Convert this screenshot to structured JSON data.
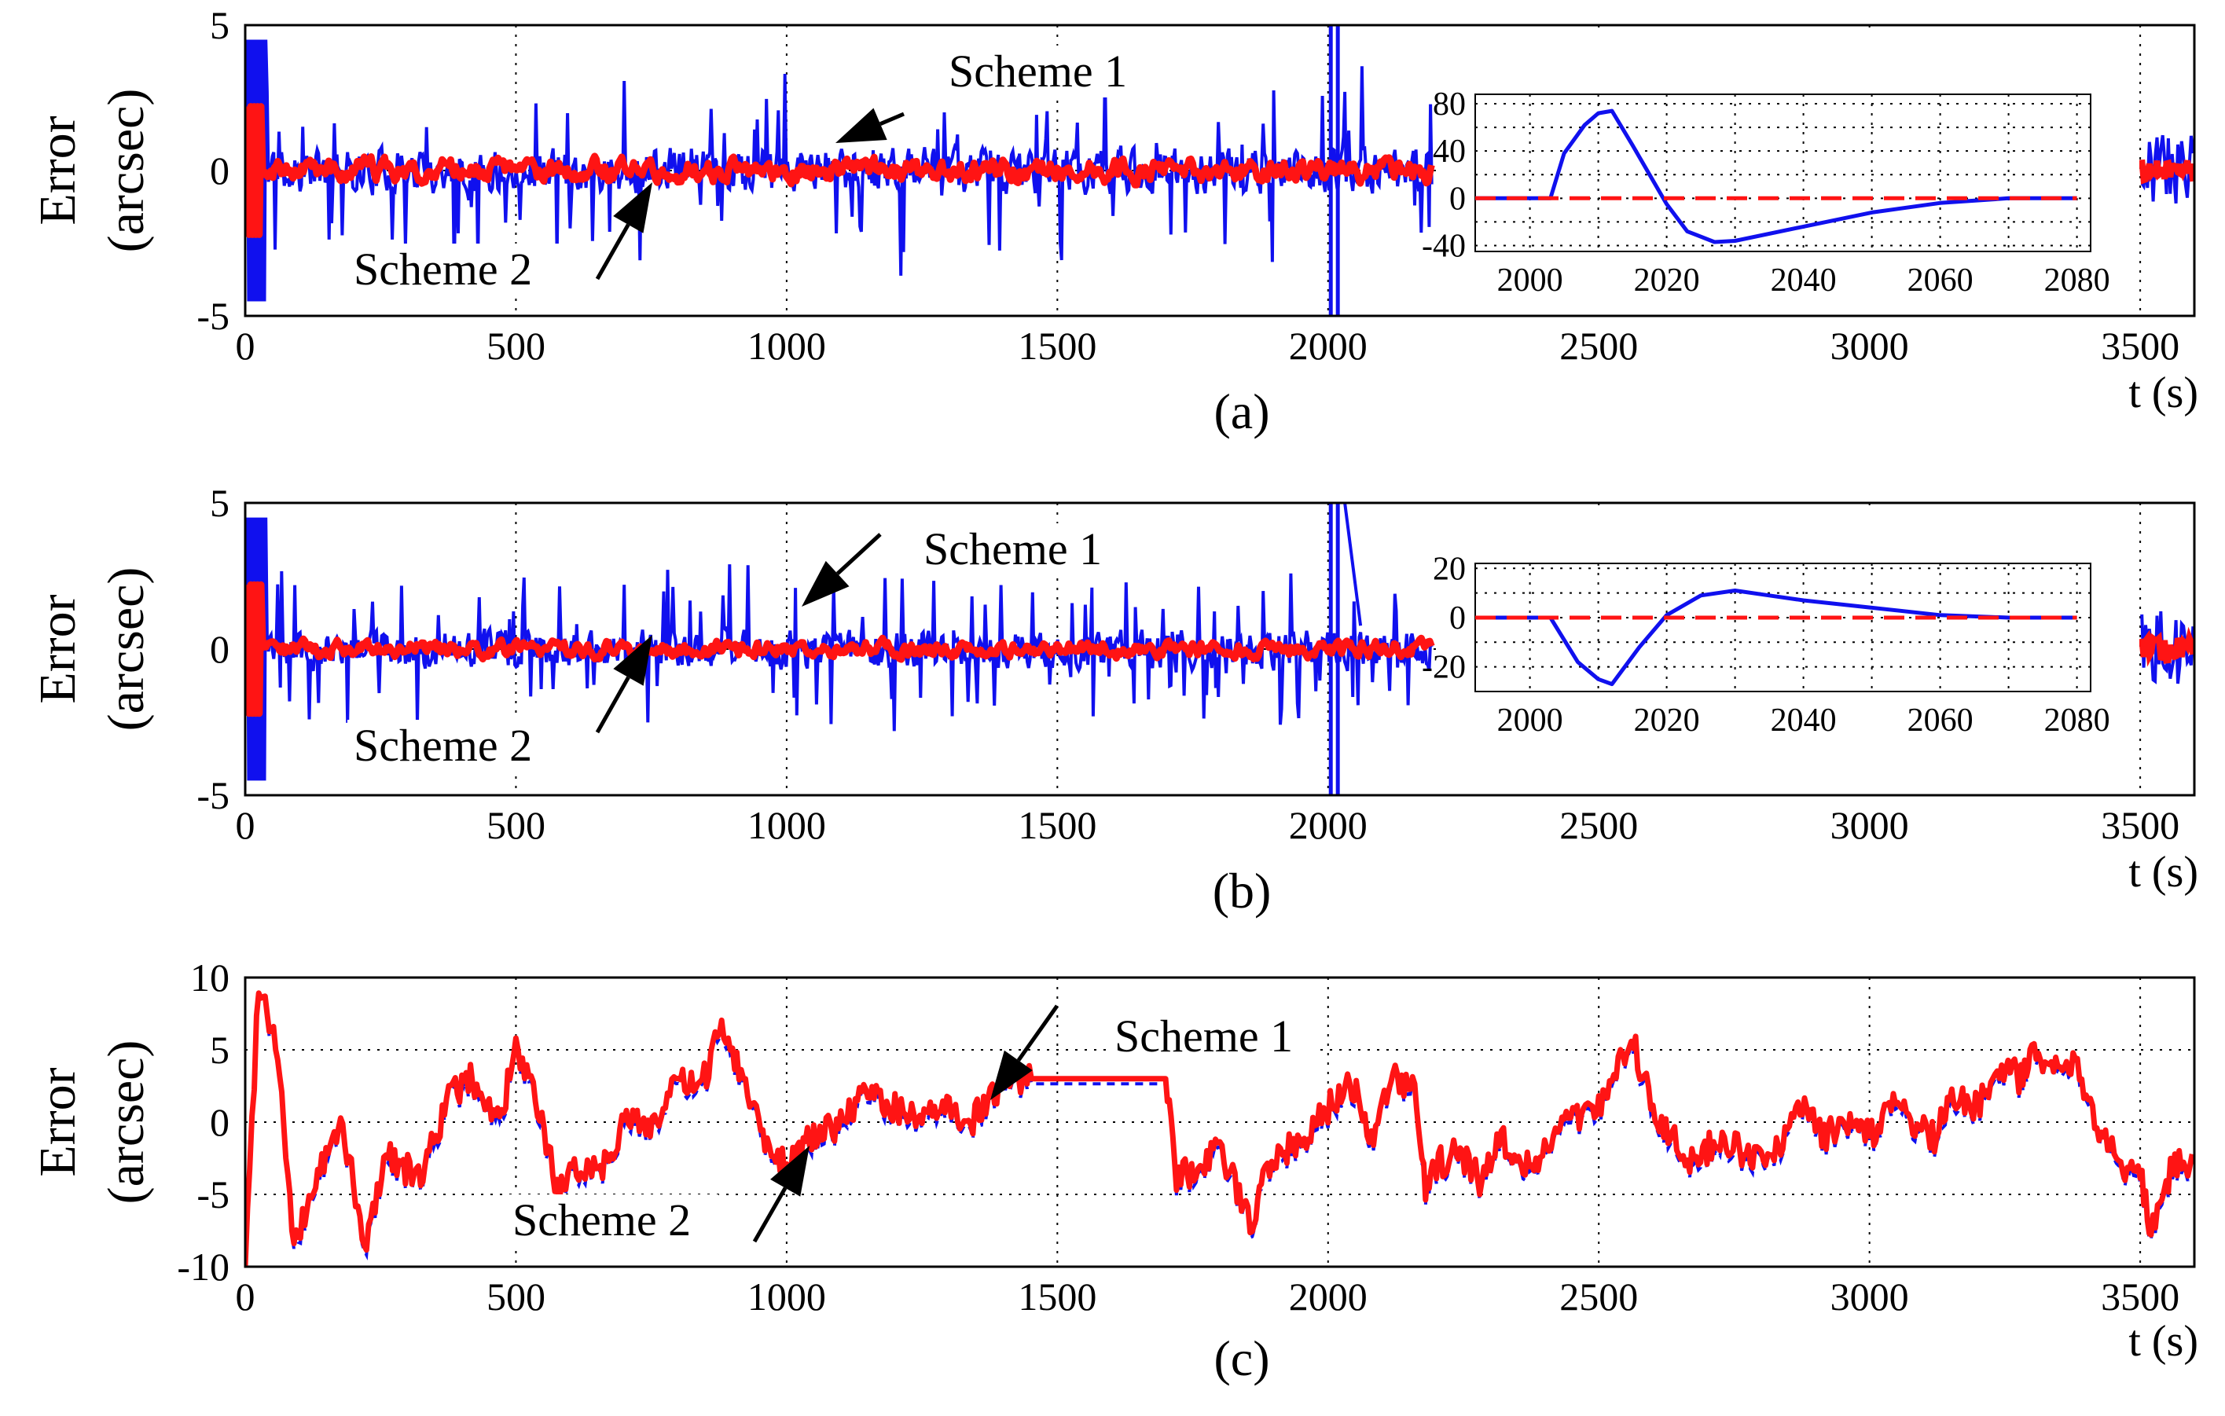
{
  "colors": {
    "scheme1": "#1010ee",
    "scheme2": "#ff1414",
    "axis": "#000000"
  },
  "chart_data": [
    {
      "type": "line",
      "panel": "(a)",
      "caption": "(a)",
      "ylabel": [
        "Error",
        "(arcsec)"
      ],
      "xlabel": "t (s)",
      "xlim": [
        0,
        3600
      ],
      "ylim": [
        -5,
        5
      ],
      "xticks": [
        "0",
        "500",
        "1000",
        "1500",
        "2000",
        "2500",
        "3000",
        "3500"
      ],
      "yticks": [
        "5",
        "0",
        "-5"
      ],
      "grid": true,
      "series": [
        {
          "name": "Scheme 1",
          "style": "solid blue",
          "amplitude_arcsec": 1.3,
          "note": "noisy error, diverges near t = 2000 s"
        },
        {
          "name": "Scheme 2",
          "style": "solid red",
          "amplitude_arcsec": 0.35
        }
      ],
      "annotations": [
        {
          "text": "Scheme 1",
          "points_to_t": 1060
        },
        {
          "text": "Scheme 2",
          "points_to_t": 760
        }
      ],
      "inset": {
        "xlim": [
          1992,
          2082
        ],
        "ylim": [
          -45,
          88
        ],
        "xticks": [
          "2000",
          "2020",
          "2040",
          "2060",
          "2080"
        ],
        "yticks": [
          "80",
          "40",
          "0",
          "-40"
        ],
        "series": [
          {
            "name": "Scheme 1",
            "style": "solid blue",
            "t": [
              1992,
              2003,
              2005,
              2008,
              2010,
              2012,
              2015,
              2020,
              2023,
              2027,
              2030,
              2040,
              2050,
              2060,
              2070,
              2080
            ],
            "y": [
              0,
              0,
              38,
              62,
              72,
              74,
              45,
              -5,
              -28,
              -37,
              -36,
              -24,
              -12,
              -4,
              0,
              0
            ]
          },
          {
            "name": "Scheme 2",
            "style": "dashed red",
            "t": [
              1992,
              2080
            ],
            "y": [
              0,
              0
            ]
          }
        ]
      }
    },
    {
      "type": "line",
      "panel": "(b)",
      "caption": "(b)",
      "ylabel": [
        "Error",
        "(arcsec)"
      ],
      "xlabel": "t (s)",
      "xlim": [
        0,
        3600
      ],
      "ylim": [
        -5,
        5
      ],
      "xticks": [
        "0",
        "500",
        "1000",
        "1500",
        "2000",
        "2500",
        "3000",
        "3500"
      ],
      "yticks": [
        "5",
        "0",
        "-5"
      ],
      "grid": true,
      "series": [
        {
          "name": "Scheme 1",
          "style": "solid blue",
          "amplitude_arcsec": 1.1,
          "note": "noisy error, diverges near t = 2000 s"
        },
        {
          "name": "Scheme 2",
          "style": "solid red",
          "amplitude_arcsec": 0.25
        }
      ],
      "annotations": [
        {
          "text": "Scheme 1",
          "points_to_t": 1040
        },
        {
          "text": "Scheme 2",
          "points_to_t": 760
        }
      ],
      "inset": {
        "xlim": [
          1992,
          2082
        ],
        "ylim": [
          -30,
          22
        ],
        "xticks": [
          "2000",
          "2020",
          "2040",
          "2060",
          "2080"
        ],
        "yticks": [
          "20",
          "0",
          "-20"
        ],
        "series": [
          {
            "name": "Scheme 1",
            "style": "solid blue",
            "t": [
              1992,
              2003,
              2007,
              2010,
              2012,
              2016,
              2020,
              2025,
              2030,
              2035,
              2040,
              2050,
              2060,
              2070,
              2080
            ],
            "y": [
              0,
              0,
              -18,
              -25,
              -27,
              -12,
              1,
              9,
              11,
              9,
              7,
              4,
              1,
              0,
              0
            ]
          },
          {
            "name": "Scheme 2",
            "style": "dashed red",
            "t": [
              1992,
              2080
            ],
            "y": [
              0,
              0
            ]
          }
        ]
      }
    },
    {
      "type": "line",
      "panel": "(c)",
      "caption": "(c)",
      "ylabel": [
        "Error",
        "(arcsec)"
      ],
      "xlabel": "t (s)",
      "xlim": [
        0,
        3600
      ],
      "ylim": [
        -10,
        10
      ],
      "xticks": [
        "0",
        "500",
        "1000",
        "1500",
        "2000",
        "2500",
        "3000",
        "3500"
      ],
      "yticks": [
        "10",
        "5",
        "0",
        "-5",
        "-10"
      ],
      "grid": true,
      "series": [
        {
          "name": "Scheme 1",
          "style": "dashed blue",
          "note": "overlaps Scheme 2"
        },
        {
          "name": "Scheme 2",
          "style": "solid red",
          "t": [
            0,
            25,
            60,
            90,
            130,
            180,
            220,
            260,
            320,
            380,
            420,
            470,
            500,
            540,
            580,
            620,
            660,
            700,
            760,
            800,
            840,
            880,
            920,
            960,
            1000,
            1050,
            1100,
            1150,
            1200,
            1250,
            1300,
            1340,
            1380,
            1420,
            1460,
            1500,
            1550,
            1600,
            1650,
            1700,
            1720,
            1760,
            1800,
            1860,
            1880,
            1920,
            1960,
            2000,
            2040,
            2080,
            2120,
            2160,
            2180,
            2200,
            2240,
            2280,
            2320,
            2360,
            2400,
            2440,
            2480,
            2520,
            2560,
            2600,
            2640,
            2680,
            2720,
            2760,
            2800,
            2840,
            2880,
            2920,
            2960,
            3000,
            3040,
            3080,
            3120,
            3160,
            3200,
            3240,
            3280,
            3300,
            3340,
            3380,
            3420,
            3460,
            3500,
            3520,
            3560,
            3600
          ],
          "y": [
            -10,
            10,
            5,
            -9,
            -4,
            0,
            -9,
            -2,
            -4,
            2,
            3,
            0,
            5,
            1,
            -5,
            -3,
            -3,
            0,
            0,
            3,
            2,
            7,
            3,
            -1,
            -3,
            -1,
            0,
            2,
            1,
            0,
            1,
            0,
            2,
            3,
            3,
            3,
            3,
            3,
            3,
            3,
            -4,
            -3,
            -2,
            -7,
            -3,
            -2,
            -1,
            1,
            3,
            -1,
            3,
            2,
            -5,
            -3,
            -2,
            -4,
            -1,
            -3,
            -2,
            0,
            1,
            2,
            6,
            1,
            -1,
            -3,
            -1,
            -2,
            -3,
            -1,
            1,
            -1,
            0,
            -1,
            1,
            0,
            -1,
            2,
            1,
            4,
            3,
            5,
            4,
            4,
            0,
            -3,
            -3,
            -8,
            -3,
            -3
          ]
        }
      ],
      "annotations": [
        {
          "text": "Scheme 1",
          "points_to_t": 1400
        },
        {
          "text": "Scheme 2",
          "points_to_t": 1060
        }
      ]
    }
  ]
}
